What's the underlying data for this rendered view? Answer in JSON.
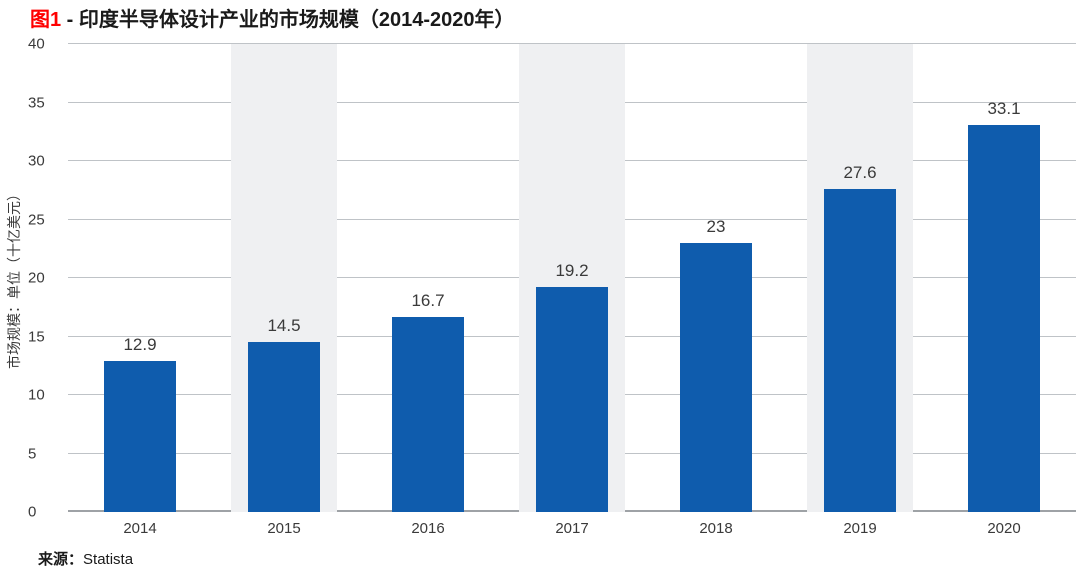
{
  "title": {
    "prefix": "图1",
    "rest": " - 印度半导体设计产业的市场规模（2014-2020年）"
  },
  "source": {
    "label": "来源：",
    "value": "Statista"
  },
  "chart_data": {
    "type": "bar",
    "title": "图1 - 印度半导体设计产业的市场规模（2014-2020年）",
    "categories": [
      "2014",
      "2015",
      "2016",
      "2017",
      "2018",
      "2019",
      "2020"
    ],
    "values": [
      12.9,
      14.5,
      16.7,
      19.2,
      23,
      27.6,
      33.1
    ],
    "value_labels": [
      "12.9",
      "14.5",
      "16.7",
      "19.2",
      "23",
      "27.6",
      "33.1"
    ],
    "xlabel": "",
    "ylabel": "市场规模：单位（十亿美元）",
    "ylim": [
      0,
      40
    ],
    "yticks": [
      0,
      5,
      10,
      15,
      20,
      25,
      30,
      35,
      40
    ],
    "grid": "horizontal",
    "legend": "none",
    "striped_columns": [
      1,
      3,
      5
    ],
    "colors": {
      "bar": "#0F5CAD",
      "stripe": "#EFF0F2",
      "gridline": "#BFC3C7",
      "axis_line": "#9EA2A6",
      "title_accent": "#FF0000",
      "text": "#3A3A3A"
    }
  }
}
